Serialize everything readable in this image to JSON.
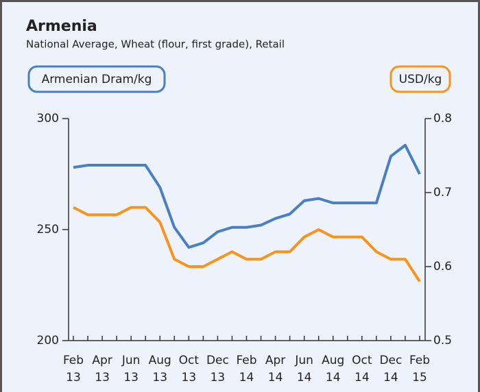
{
  "chart_data": {
    "type": "line",
    "title": "Armenia",
    "subtitle": "National Average, Wheat (flour, first grade), Retail",
    "categories": [
      "Feb 13",
      null,
      "Apr 13",
      null,
      "Jun 13",
      null,
      "Aug 13",
      null,
      "Oct 13",
      null,
      "Dec 13",
      null,
      "Feb 14",
      null,
      "Apr 14",
      null,
      "Jun 14",
      null,
      "Aug 14",
      null,
      "Oct 14",
      null,
      "Dec 14",
      null,
      "Feb 15"
    ],
    "series": [
      {
        "name": "Armenian Dram/kg",
        "color": "#4a7fc1",
        "axis": "y",
        "values": [
          278,
          279,
          279,
          279,
          279,
          279,
          269,
          251,
          242,
          244,
          249,
          251,
          251,
          252,
          255,
          257,
          263,
          264,
          262,
          262,
          262,
          262,
          283,
          288,
          275
        ]
      },
      {
        "name": "USD/kg",
        "color": "#f7941d",
        "axis": "y2",
        "values": [
          0.68,
          0.67,
          0.67,
          0.67,
          0.68,
          0.68,
          0.66,
          0.61,
          0.6,
          0.6,
          0.61,
          0.62,
          0.61,
          0.61,
          0.62,
          0.62,
          0.64,
          0.65,
          0.64,
          0.64,
          0.64,
          0.62,
          0.61,
          0.61,
          0.58
        ]
      }
    ],
    "ylim": [
      200,
      300
    ],
    "yticks": [
      200,
      250,
      300
    ],
    "y2lim": [
      0.5,
      0.8
    ],
    "y2ticks": [
      0.5,
      0.6,
      0.7,
      0.8
    ]
  }
}
